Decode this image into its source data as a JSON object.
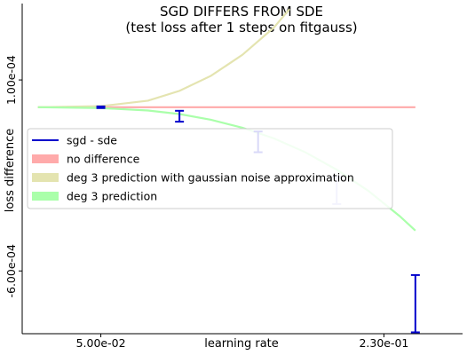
{
  "chart_data": {
    "type": "line",
    "title": "SGD DIFFERS FROM SDE",
    "subtitle": "(test loss after 1 steps on fitgauss)",
    "xlabel": "learning rate",
    "ylabel": "loss difference",
    "xlim": [
      0.0,
      0.28
    ],
    "ylim": [
      -0.00083,
      0.00038
    ],
    "xticks": [
      {
        "value": 0.05,
        "label": "5.00e-02"
      },
      {
        "value": 0.23,
        "label": "2.30e-01"
      }
    ],
    "yticks": [
      {
        "value": 0.0001,
        "label": "1.00e-04"
      },
      {
        "value": -0.0006,
        "label": "-6.00e-04"
      }
    ],
    "grid": false,
    "legend_position": "center-left",
    "series": [
      {
        "name": "sgd - sde",
        "kind": "errorbar",
        "color": "#0000cc",
        "points": [
          {
            "x": 0.05,
            "y": 0.0,
            "low": -3e-06,
            "high": 3e-06
          },
          {
            "x": 0.1,
            "y": -3.3e-05,
            "low": -5.3e-05,
            "high": -1.3e-05
          },
          {
            "x": 0.15,
            "y": -0.000127,
            "low": -0.000165,
            "high": -8.9e-05
          },
          {
            "x": 0.2,
            "y": -0.000305,
            "low": -0.000355,
            "high": -0.000255,
            "faded": true
          },
          {
            "x": 0.25,
            "y": -0.00072,
            "low": -0.000825,
            "high": -0.000615
          }
        ]
      },
      {
        "name": "no difference",
        "kind": "line",
        "color": "#ffaaaa",
        "x": [
          0.01,
          0.25
        ],
        "y": [
          0.0,
          0.0
        ]
      },
      {
        "name": "deg 3 prediction with gaussian noise approximation",
        "kind": "line",
        "color": "#e4e4b0",
        "x": [
          0.01,
          0.05,
          0.08,
          0.1,
          0.12,
          0.14,
          0.16,
          0.17
        ],
        "y": [
          0.0,
          4e-06,
          2.4e-05,
          6e-05,
          0.000115,
          0.000192,
          0.000292,
          0.00036
        ]
      },
      {
        "name": "deg 3 prediction",
        "kind": "line",
        "color": "#aaffaa",
        "x": [
          0.01,
          0.05,
          0.08,
          0.1,
          0.12,
          0.14,
          0.16,
          0.18,
          0.2,
          0.22,
          0.24,
          0.25
        ],
        "y": [
          0.0,
          -3e-06,
          -1.2e-05,
          -2.5e-05,
          -4.6e-05,
          -7.5e-05,
          -0.000114,
          -0.000165,
          -0.000229,
          -0.000306,
          -0.000399,
          -0.000452
        ]
      }
    ]
  }
}
